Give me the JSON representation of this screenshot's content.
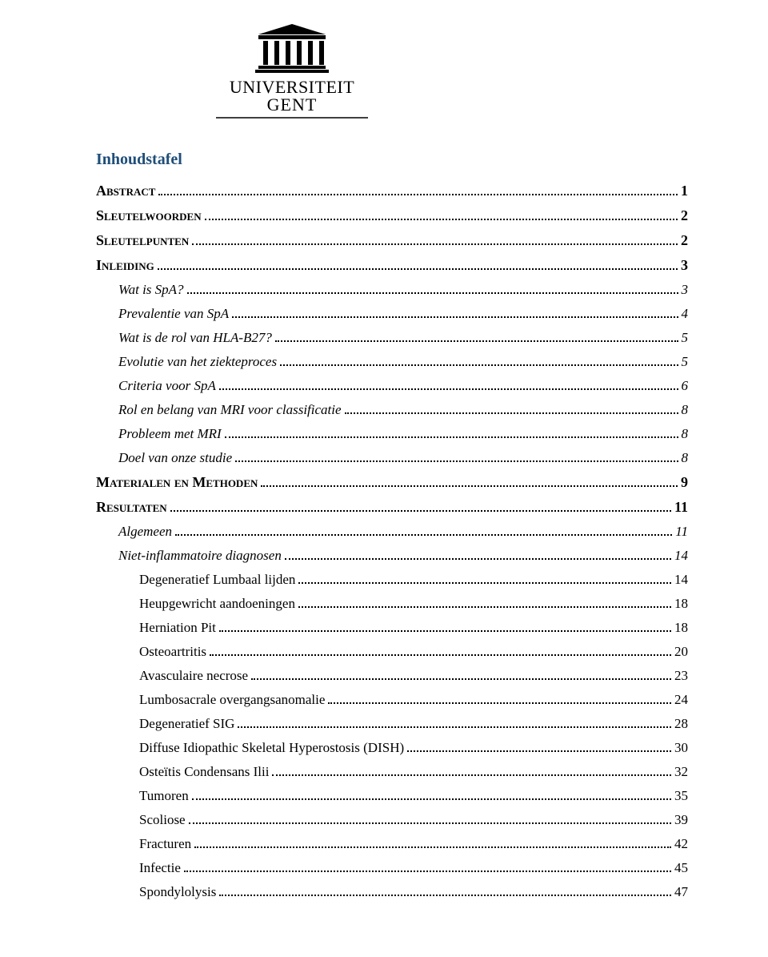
{
  "logo": {
    "line1": "UNIVERSITEIT",
    "line2": "GENT"
  },
  "heading": "Inhoudstafel",
  "entries": [
    {
      "level": 1,
      "label": "Abstract",
      "page": "1"
    },
    {
      "level": 1,
      "label": "Sleutelwoorden",
      "page": "2"
    },
    {
      "level": 1,
      "label": "Sleutelpunten",
      "page": "2"
    },
    {
      "level": 1,
      "label": "Inleiding",
      "page": "3"
    },
    {
      "level": 2,
      "label": "Wat is SpA?",
      "page": "3"
    },
    {
      "level": 2,
      "label": "Prevalentie van SpA",
      "page": "4"
    },
    {
      "level": 2,
      "label": "Wat is de rol van HLA-B27?",
      "page": "5"
    },
    {
      "level": 2,
      "label": "Evolutie van het ziekteproces",
      "page": "5"
    },
    {
      "level": 2,
      "label": "Criteria voor SpA",
      "page": "6"
    },
    {
      "level": 2,
      "label": "Rol en belang van MRI voor classificatie",
      "page": "8"
    },
    {
      "level": 2,
      "label": "Probleem met MRI",
      "page": "8"
    },
    {
      "level": 2,
      "label": "Doel van onze studie",
      "page": "8"
    },
    {
      "level": 1,
      "label": "Materialen en Methoden",
      "page": "9"
    },
    {
      "level": 1,
      "label": "Resultaten",
      "page": "11"
    },
    {
      "level": 2,
      "label": "Algemeen",
      "page": "11"
    },
    {
      "level": 2,
      "label": "Niet-inflammatoire diagnosen",
      "page": "14"
    },
    {
      "level": 3,
      "label": "Degeneratief Lumbaal lijden",
      "page": "14"
    },
    {
      "level": 3,
      "label": "Heupgewricht aandoeningen",
      "page": "18"
    },
    {
      "level": 3,
      "label": "Herniation Pit",
      "page": "18"
    },
    {
      "level": 3,
      "label": "Osteoartritis",
      "page": "20"
    },
    {
      "level": 3,
      "label": "Avasculaire necrose",
      "page": "23"
    },
    {
      "level": 3,
      "label": "Lumbosacrale overgangsanomalie",
      "page": "24"
    },
    {
      "level": 3,
      "label": "Degeneratief SIG",
      "page": "28"
    },
    {
      "level": 3,
      "label": "Diffuse Idiopathic Skeletal Hyperostosis (DISH)",
      "page": "30"
    },
    {
      "level": 3,
      "label": "Osteïtis Condensans Ilii",
      "page": "32"
    },
    {
      "level": 3,
      "label": "Tumoren",
      "page": "35"
    },
    {
      "level": 3,
      "label": "Scoliose",
      "page": "39"
    },
    {
      "level": 3,
      "label": "Fracturen",
      "page": "42"
    },
    {
      "level": 3,
      "label": "Infectie",
      "page": "45"
    },
    {
      "level": 3,
      "label": "Spondylolysis",
      "page": "47"
    }
  ],
  "colors": {
    "heading": "#1f4e79",
    "text": "#000000",
    "background": "#ffffff"
  },
  "typography": {
    "heading_fontsize": 20,
    "level1_fontsize": 18,
    "level2_fontsize": 17,
    "level3_fontsize": 17,
    "font_family": "Georgia, serif"
  }
}
